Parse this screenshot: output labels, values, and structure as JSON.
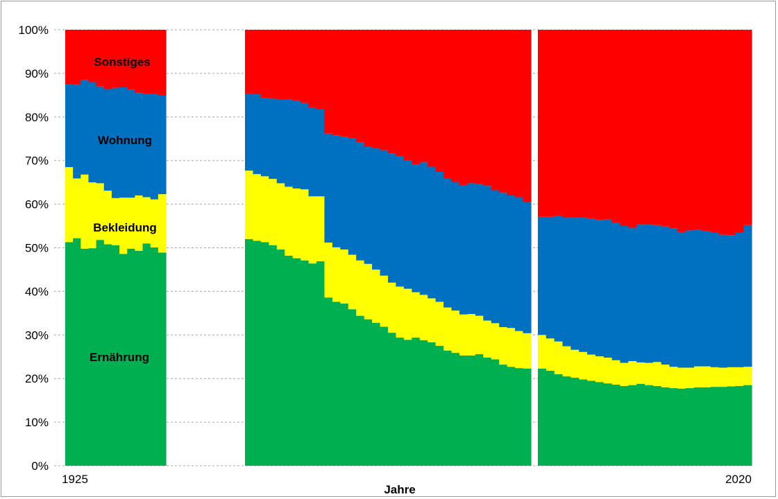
{
  "chart_data": {
    "type": "area",
    "stacked": true,
    "normalized_percent": true,
    "xlabel": "Jahre",
    "ylabel": "",
    "ylim": [
      0,
      100
    ],
    "y_ticks": [
      "0%",
      "10%",
      "20%",
      "30%",
      "40%",
      "50%",
      "60%",
      "70%",
      "80%",
      "90%",
      "100%"
    ],
    "x_tick_labels": [
      "1925",
      "2020"
    ],
    "grid": "horizontal dashed",
    "series_order_bottom_to_top": [
      "Ernährung",
      "Bekleidung",
      "Wohnung",
      "Sonstiges"
    ],
    "colors": {
      "Ernährung": "#00b050",
      "Bekleidung": "#ffff00",
      "Wohnung": "#0070c0",
      "Sonstiges": "#ff0000"
    },
    "segments": [
      {
        "id": "segment-1",
        "values": [
          [
            51.3,
            68.5,
            87.6
          ],
          [
            52.2,
            65.9,
            87.4
          ],
          [
            49.8,
            66.8,
            88.5
          ],
          [
            49.9,
            65.0,
            88.0
          ],
          [
            51.8,
            64.8,
            87.0
          ],
          [
            50.8,
            63.1,
            86.4
          ],
          [
            50.6,
            61.4,
            86.7
          ],
          [
            48.6,
            61.5,
            86.8
          ],
          [
            49.8,
            61.5,
            86.3
          ],
          [
            49.3,
            62.0,
            85.5
          ],
          [
            51.0,
            61.6,
            85.3
          ],
          [
            50.1,
            61.1,
            85.3
          ],
          [
            48.9,
            62.3,
            84.9
          ]
        ]
      },
      {
        "id": "segment-2",
        "values": [
          [
            52.0,
            67.7,
            85.3
          ],
          [
            51.6,
            66.9,
            85.2
          ],
          [
            51.3,
            66.4,
            84.3
          ],
          [
            50.6,
            65.8,
            84.2
          ],
          [
            49.6,
            64.8,
            84.1
          ],
          [
            48.2,
            64.0,
            84.0
          ],
          [
            47.6,
            63.6,
            83.8
          ],
          [
            47.1,
            63.4,
            83.2
          ],
          [
            46.4,
            61.8,
            82.2
          ],
          [
            46.9,
            61.8,
            81.8
          ],
          [
            38.6,
            51.2,
            76.2
          ],
          [
            37.6,
            50.1,
            75.8
          ],
          [
            37.2,
            49.6,
            75.5
          ],
          [
            35.9,
            48.4,
            75.1
          ],
          [
            34.4,
            47.1,
            74.2
          ],
          [
            33.6,
            46.3,
            73.2
          ],
          [
            32.8,
            45.0,
            72.8
          ],
          [
            31.9,
            43.6,
            72.4
          ],
          [
            30.5,
            42.0,
            71.6
          ],
          [
            29.4,
            41.1,
            71.0
          ],
          [
            28.9,
            40.6,
            70.0
          ],
          [
            29.4,
            39.8,
            69.1
          ],
          [
            28.8,
            39.2,
            69.6
          ],
          [
            28.3,
            38.4,
            68.6
          ],
          [
            27.5,
            37.6,
            67.4
          ],
          [
            26.4,
            36.3,
            65.9
          ],
          [
            25.9,
            35.6,
            65.1
          ],
          [
            25.3,
            34.7,
            64.4
          ],
          [
            25.3,
            34.8,
            64.8
          ],
          [
            25.6,
            34.4,
            64.6
          ],
          [
            24.8,
            33.3,
            64.2
          ],
          [
            24.4,
            32.7,
            63.2
          ],
          [
            23.2,
            31.8,
            62.6
          ],
          [
            22.7,
            31.6,
            62.0
          ],
          [
            22.4,
            30.9,
            61.6
          ],
          [
            22.3,
            30.4,
            60.5
          ]
        ]
      },
      {
        "id": "segment-3",
        "values": [
          [
            22.3,
            30.0,
            57.1
          ],
          [
            21.8,
            29.2,
            57.1
          ],
          [
            21.0,
            28.5,
            57.3
          ],
          [
            20.5,
            27.4,
            56.9
          ],
          [
            20.2,
            26.6,
            56.9
          ],
          [
            19.8,
            26.1,
            56.9
          ],
          [
            19.5,
            25.5,
            56.7
          ],
          [
            19.2,
            25.1,
            56.4
          ],
          [
            18.9,
            24.8,
            56.5
          ],
          [
            18.6,
            24.2,
            55.7
          ],
          [
            18.3,
            23.6,
            55.0
          ],
          [
            18.5,
            24.0,
            54.6
          ],
          [
            18.8,
            23.7,
            55.3
          ],
          [
            18.5,
            23.6,
            55.3
          ],
          [
            18.3,
            23.8,
            55.2
          ],
          [
            18.0,
            23.2,
            54.9
          ],
          [
            17.8,
            22.7,
            54.5
          ],
          [
            17.7,
            22.5,
            53.6
          ],
          [
            17.8,
            22.5,
            54.0
          ],
          [
            18.0,
            22.8,
            54.2
          ],
          [
            18.0,
            22.8,
            53.8
          ],
          [
            18.1,
            22.6,
            53.5
          ],
          [
            18.1,
            22.5,
            53.0
          ],
          [
            18.2,
            22.6,
            52.9
          ],
          [
            18.3,
            22.6,
            53.5
          ],
          [
            18.5,
            22.7,
            55.2
          ]
        ]
      }
    ],
    "annotations": [
      "Sonstiges",
      "Wohnung",
      "Bekleidung",
      "Ernährung"
    ]
  }
}
